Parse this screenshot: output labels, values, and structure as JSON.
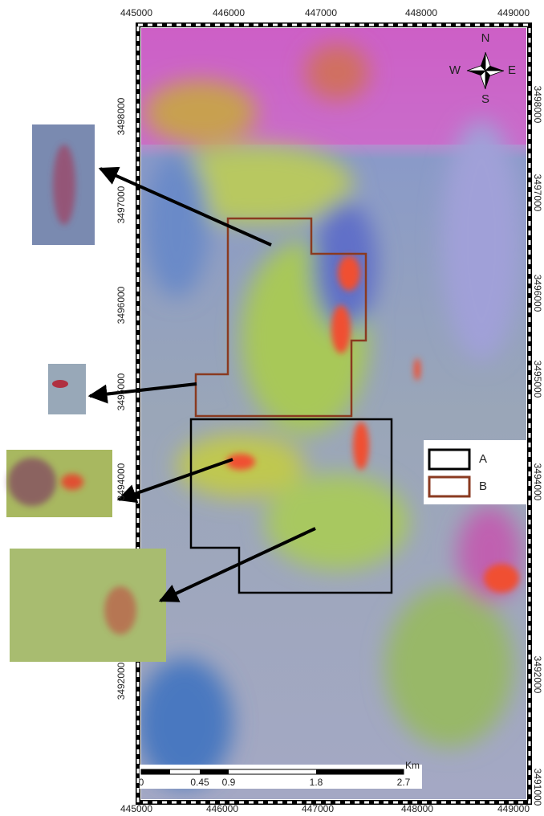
{
  "map": {
    "x_labels_top": [
      "445000",
      "446000",
      "447000",
      "448000",
      "449000"
    ],
    "x_labels_bottom": [
      "445000",
      "446000",
      "447000",
      "448000",
      "449000"
    ],
    "y_labels_left": [
      "3498000",
      "3497000",
      "3496000",
      "3495000",
      "3494000",
      "3492000"
    ],
    "y_labels_right": [
      "3498000",
      "3497000",
      "3496000",
      "3495000",
      "3494000",
      "3492000",
      "3491000"
    ],
    "compass": {
      "n": "N",
      "s": "S",
      "w": "W",
      "e": "E"
    },
    "legend": [
      {
        "label": "A"
      },
      {
        "label": "B"
      }
    ],
    "scale_bar": {
      "labels": [
        "0",
        "0.45",
        "0.9",
        "1.8",
        "2.7"
      ],
      "unit": "Km"
    }
  }
}
